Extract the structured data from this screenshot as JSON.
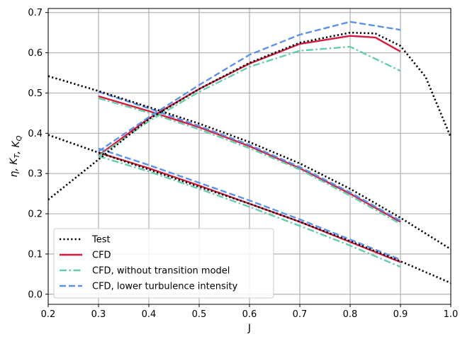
{
  "chart_data": {
    "type": "line",
    "title": "",
    "xlabel": "J",
    "ylabel": "η, K_T, K_Q",
    "xlim": [
      0.2,
      1.0
    ],
    "ylim": [
      -0.025,
      0.71
    ],
    "xticks": [
      0.2,
      0.3,
      0.4,
      0.5,
      0.6,
      0.7,
      0.8,
      0.9,
      1.0
    ],
    "xtick_labels": [
      "0.2",
      "0.3",
      "0.4",
      "0.5",
      "0.6",
      "0.7",
      "0.8",
      "0.9",
      "1.0"
    ],
    "yticks": [
      0.0,
      0.1,
      0.2,
      0.3,
      0.4,
      0.5,
      0.6,
      0.7
    ],
    "ytick_labels": [
      "0.0",
      "0.1",
      "0.2",
      "0.3",
      "0.4",
      "0.5",
      "0.6",
      "0.7"
    ],
    "grid": true,
    "legend_position": "lower-left",
    "series": [
      {
        "name": "Test",
        "color": "#000000",
        "style": "dotted",
        "curves": [
          {
            "x": [
              0.2,
              0.3,
              0.4,
              0.5,
              0.6,
              0.7,
              0.8,
              0.9,
              1.0
            ],
            "y": [
              0.542,
              0.505,
              0.465,
              0.424,
              0.378,
              0.325,
              0.262,
              0.19,
              0.112
            ]
          },
          {
            "x": [
              0.2,
              0.3,
              0.4,
              0.5,
              0.6,
              0.7,
              0.8,
              0.9,
              1.0
            ],
            "y": [
              0.396,
              0.352,
              0.31,
              0.267,
              0.225,
              0.18,
              0.132,
              0.082,
              0.028
            ]
          },
          {
            "x": [
              0.2,
              0.3,
              0.4,
              0.5,
              0.6,
              0.7,
              0.8,
              0.85,
              0.9,
              0.95,
              1.0
            ],
            "y": [
              0.235,
              0.335,
              0.435,
              0.51,
              0.575,
              0.625,
              0.65,
              0.648,
              0.617,
              0.54,
              0.39
            ]
          }
        ]
      },
      {
        "name": "CFD",
        "color": "#d7193f",
        "style": "solid",
        "curves": [
          {
            "x": [
              0.3,
              0.4,
              0.5,
              0.6,
              0.7,
              0.8,
              0.9
            ],
            "y": [
              0.492,
              0.455,
              0.415,
              0.368,
              0.313,
              0.25,
              0.18
            ]
          },
          {
            "x": [
              0.3,
              0.4,
              0.5,
              0.6,
              0.7,
              0.8,
              0.9
            ],
            "y": [
              0.352,
              0.313,
              0.27,
              0.225,
              0.18,
              0.13,
              0.08
            ]
          },
          {
            "x": [
              0.3,
              0.4,
              0.5,
              0.6,
              0.7,
              0.8,
              0.85,
              0.9
            ],
            "y": [
              0.345,
              0.437,
              0.51,
              0.573,
              0.622,
              0.642,
              0.638,
              0.603
            ]
          }
        ]
      },
      {
        "name": "CFD, without transition model",
        "color": "#66cdaa",
        "style": "dashdot",
        "curves": [
          {
            "x": [
              0.3,
              0.4,
              0.5,
              0.6,
              0.7,
              0.8,
              0.9
            ],
            "y": [
              0.487,
              0.451,
              0.41,
              0.363,
              0.31,
              0.245,
              0.175
            ]
          },
          {
            "x": [
              0.3,
              0.4,
              0.5,
              0.6,
              0.7,
              0.8,
              0.9
            ],
            "y": [
              0.343,
              0.305,
              0.262,
              0.217,
              0.17,
              0.121,
              0.068
            ]
          },
          {
            "x": [
              0.3,
              0.4,
              0.5,
              0.6,
              0.7,
              0.8,
              0.9
            ],
            "y": [
              0.343,
              0.43,
              0.503,
              0.565,
              0.605,
              0.615,
              0.555
            ]
          }
        ]
      },
      {
        "name": "CFD, lower turbulence intensity",
        "color": "#5f90e8",
        "style": "dashed",
        "curves": [
          {
            "x": [
              0.3,
              0.4,
              0.5,
              0.6,
              0.7,
              0.8,
              0.9
            ],
            "y": [
              0.503,
              0.462,
              0.418,
              0.371,
              0.316,
              0.253,
              0.183
            ]
          },
          {
            "x": [
              0.3,
              0.4,
              0.5,
              0.6,
              0.7,
              0.8,
              0.9
            ],
            "y": [
              0.362,
              0.321,
              0.277,
              0.233,
              0.186,
              0.136,
              0.086
            ]
          },
          {
            "x": [
              0.3,
              0.4,
              0.5,
              0.6,
              0.7,
              0.8,
              0.9
            ],
            "y": [
              0.355,
              0.44,
              0.52,
              0.595,
              0.645,
              0.677,
              0.657
            ]
          }
        ]
      }
    ]
  }
}
